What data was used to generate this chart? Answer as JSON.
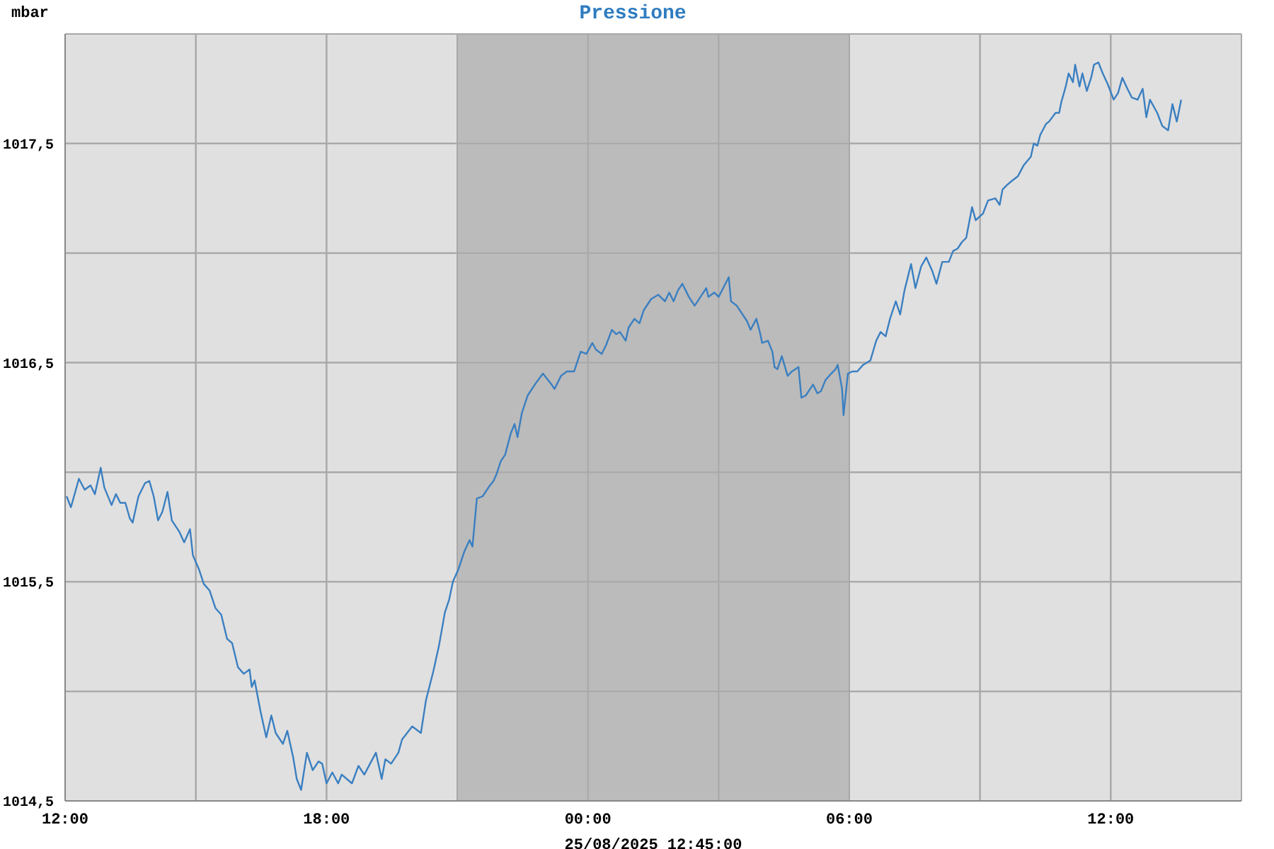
{
  "chart_data": {
    "type": "line",
    "title": "Pressione",
    "ylabel": "mbar",
    "xlabel": "25/08/2025 12:45:00",
    "color": "#3a7fc1",
    "marker": "none",
    "grid": true,
    "xlim": [
      "2025-08-24T12:00",
      "2025-08-25T15:00"
    ],
    "xticks": [
      {
        "value": "2025-08-24T12:00",
        "label": "12:00"
      },
      {
        "value": "2025-08-24T15:00",
        "label": null
      },
      {
        "value": "2025-08-24T18:00",
        "label": "18:00"
      },
      {
        "value": "2025-08-24T21:00",
        "label": null
      },
      {
        "value": "2025-08-25T00:00",
        "label": "00:00"
      },
      {
        "value": "2025-08-25T03:00",
        "label": null
      },
      {
        "value": "2025-08-25T06:00",
        "label": "06:00"
      },
      {
        "value": "2025-08-25T09:00",
        "label": null
      },
      {
        "value": "2025-08-25T12:00",
        "label": "12:00"
      },
      {
        "value": "2025-08-25T15:00",
        "label": null
      }
    ],
    "ylim": [
      1014.5,
      1018
    ],
    "yticks": [
      {
        "value": 1014.5,
        "label": "1014,5"
      },
      {
        "value": 1015,
        "label": null
      },
      {
        "value": 1015.5,
        "label": "1015,5"
      },
      {
        "value": 1016,
        "label": null
      },
      {
        "value": 1016.5,
        "label": "1016,5"
      },
      {
        "value": 1017,
        "label": null
      },
      {
        "value": 1017.5,
        "label": "1017,5"
      },
      {
        "value": 1018,
        "label": null
      }
    ],
    "bands": [
      {
        "axis": "x",
        "from": "2025-08-24T21:00",
        "to": "2025-08-25T06:00",
        "color": "#bbbbbb"
      }
    ],
    "x": [
      "2025-08-24T12:02",
      "2025-08-24T12:08",
      "2025-08-24T12:19",
      "2025-08-24T12:27",
      "2025-08-24T12:35",
      "2025-08-24T12:41",
      "2025-08-24T12:49",
      "2025-08-24T12:54",
      "2025-08-24T13:04",
      "2025-08-24T13:10",
      "2025-08-24T13:16",
      "2025-08-24T13:23",
      "2025-08-24T13:29",
      "2025-08-24T13:33",
      "2025-08-24T13:41",
      "2025-08-24T13:50",
      "2025-08-24T13:56",
      "2025-08-24T14:02",
      "2025-08-24T14:08",
      "2025-08-24T14:14",
      "2025-08-24T14:21",
      "2025-08-24T14:27",
      "2025-08-24T14:37",
      "2025-08-24T14:44",
      "2025-08-24T14:52",
      "2025-08-24T14:56",
      "2025-08-24T15:04",
      "2025-08-24T15:11",
      "2025-08-24T15:19",
      "2025-08-24T15:27",
      "2025-08-24T15:35",
      "2025-08-24T15:43",
      "2025-08-24T15:50",
      "2025-08-24T15:58",
      "2025-08-24T16:06",
      "2025-08-24T16:14",
      "2025-08-24T16:17",
      "2025-08-24T16:21",
      "2025-08-24T16:29",
      "2025-08-24T16:37",
      "2025-08-24T16:44",
      "2025-08-24T16:50",
      "2025-08-24T17:00",
      "2025-08-24T17:06",
      "2025-08-24T17:14",
      "2025-08-24T17:19",
      "2025-08-24T17:25",
      "2025-08-24T17:33",
      "2025-08-24T17:41",
      "2025-08-24T17:49",
      "2025-08-24T17:54",
      "2025-08-24T18:00",
      "2025-08-24T18:08",
      "2025-08-24T18:16",
      "2025-08-24T18:21",
      "2025-08-24T18:35",
      "2025-08-24T18:44",
      "2025-08-24T18:52",
      "2025-08-24T19:00",
      "2025-08-24T19:08",
      "2025-08-24T19:16",
      "2025-08-24T19:21",
      "2025-08-24T19:29",
      "2025-08-24T19:39",
      "2025-08-24T19:44",
      "2025-08-24T19:58",
      "2025-08-24T20:10",
      "2025-08-24T20:17",
      "2025-08-24T20:27",
      "2025-08-24T20:35",
      "2025-08-24T20:43",
      "2025-08-24T20:49",
      "2025-08-24T20:54",
      "2025-08-24T21:02",
      "2025-08-24T21:10",
      "2025-08-24T21:17",
      "2025-08-24T21:21",
      "2025-08-24T21:27",
      "2025-08-24T21:35",
      "2025-08-24T21:43",
      "2025-08-24T21:50",
      "2025-08-24T21:54",
      "2025-08-24T22:00",
      "2025-08-24T22:06",
      "2025-08-24T22:14",
      "2025-08-24T22:19",
      "2025-08-24T22:23",
      "2025-08-24T22:29",
      "2025-08-24T22:37",
      "2025-08-24T22:49",
      "2025-08-24T22:58",
      "2025-08-24T23:10",
      "2025-08-24T23:14",
      "2025-08-24T23:23",
      "2025-08-24T23:31",
      "2025-08-24T23:41",
      "2025-08-24T23:50",
      "2025-08-24T23:58",
      "2025-08-25T00:06",
      "2025-08-25T00:11",
      "2025-08-25T00:19",
      "2025-08-25T00:25",
      "2025-08-25T00:33",
      "2025-08-25T00:39",
      "2025-08-25T00:44",
      "2025-08-25T00:52",
      "2025-08-25T00:56",
      "2025-08-25T01:04",
      "2025-08-25T01:11",
      "2025-08-25T01:17",
      "2025-08-25T01:27",
      "2025-08-25T01:37",
      "2025-08-25T01:46",
      "2025-08-25T01:52",
      "2025-08-25T01:58",
      "2025-08-25T02:04",
      "2025-08-25T02:10",
      "2025-08-25T02:19",
      "2025-08-25T02:27",
      "2025-08-25T02:35",
      "2025-08-25T02:43",
      "2025-08-25T02:46",
      "2025-08-25T02:54",
      "2025-08-25T03:00",
      "2025-08-25T03:14",
      "2025-08-25T03:17",
      "2025-08-25T03:25",
      "2025-08-25T03:39",
      "2025-08-25T03:44",
      "2025-08-25T03:52",
      "2025-08-25T03:56",
      "2025-08-25T04:00",
      "2025-08-25T04:08",
      "2025-08-25T04:14",
      "2025-08-25T04:17",
      "2025-08-25T04:21",
      "2025-08-25T04:27",
      "2025-08-25T04:35",
      "2025-08-25T04:41",
      "2025-08-25T04:50",
      "2025-08-25T04:54",
      "2025-08-25T05:00",
      "2025-08-25T05:10",
      "2025-08-25T05:16",
      "2025-08-25T05:21",
      "2025-08-25T05:27",
      "2025-08-25T05:35",
      "2025-08-25T05:41",
      "2025-08-25T05:44",
      "2025-08-25T05:50",
      "2025-08-25T05:52",
      "2025-08-25T05:58",
      "2025-08-25T06:04",
      "2025-08-25T06:11",
      "2025-08-25T06:19",
      "2025-08-25T06:29",
      "2025-08-25T06:37",
      "2025-08-25T06:43",
      "2025-08-25T06:50",
      "2025-08-25T06:56",
      "2025-08-25T07:04",
      "2025-08-25T07:10",
      "2025-08-25T07:16",
      "2025-08-25T07:25",
      "2025-08-25T07:31",
      "2025-08-25T07:39",
      "2025-08-25T07:46",
      "2025-08-25T07:54",
      "2025-08-25T08:00",
      "2025-08-25T08:08",
      "2025-08-25T08:17",
      "2025-08-25T08:23",
      "2025-08-25T08:29",
      "2025-08-25T08:35",
      "2025-08-25T08:41",
      "2025-08-25T08:49",
      "2025-08-25T08:54",
      "2025-08-25T09:04",
      "2025-08-25T09:11",
      "2025-08-25T09:21",
      "2025-08-25T09:27",
      "2025-08-25T09:31",
      "2025-08-25T09:37",
      "2025-08-25T09:44",
      "2025-08-25T09:52",
      "2025-08-25T10:00",
      "2025-08-25T10:10",
      "2025-08-25T10:14",
      "2025-08-25T10:19",
      "2025-08-25T10:23",
      "2025-08-25T10:31",
      "2025-08-25T10:35",
      "2025-08-25T10:44",
      "2025-08-25T10:49",
      "2025-08-25T10:52",
      "2025-08-25T10:58",
      "2025-08-25T11:02",
      "2025-08-25T11:08",
      "2025-08-25T11:11",
      "2025-08-25T11:17",
      "2025-08-25T11:21",
      "2025-08-25T11:27",
      "2025-08-25T11:33",
      "2025-08-25T11:37",
      "2025-08-25T11:43",
      "2025-08-25T11:49",
      "2025-08-25T11:56",
      "2025-08-25T12:04",
      "2025-08-25T12:10",
      "2025-08-25T12:16",
      "2025-08-25T12:23",
      "2025-08-25T12:29",
      "2025-08-25T12:37",
      "2025-08-25T12:44",
      "2025-08-25T12:49",
      "2025-08-25T12:54",
      "2025-08-25T13:04",
      "2025-08-25T13:11",
      "2025-08-25T13:19",
      "2025-08-25T13:25",
      "2025-08-25T13:31",
      "2025-08-25T13:37"
    ],
    "values": [
      1015.89,
      1015.84,
      1015.97,
      1015.92,
      1015.94,
      1015.9,
      1016.02,
      1015.93,
      1015.85,
      1015.9,
      1015.86,
      1015.86,
      1015.79,
      1015.77,
      1015.89,
      1015.95,
      1015.96,
      1015.89,
      1015.78,
      1015.82,
      1015.91,
      1015.78,
      1015.73,
      1015.68,
      1015.74,
      1015.62,
      1015.56,
      1015.49,
      1015.46,
      1015.38,
      1015.35,
      1015.24,
      1015.22,
      1015.11,
      1015.08,
      1015.1,
      1015.02,
      1015.05,
      1014.91,
      1014.79,
      1014.89,
      1014.81,
      1014.76,
      1014.82,
      1014.7,
      1014.6,
      1014.55,
      1014.72,
      1014.64,
      1014.68,
      1014.67,
      1014.58,
      1014.63,
      1014.58,
      1014.62,
      1014.58,
      1014.66,
      1014.62,
      1014.67,
      1014.72,
      1014.6,
      1014.69,
      1014.67,
      1014.72,
      1014.78,
      1014.84,
      1014.81,
      1014.96,
      1015.09,
      1015.21,
      1015.36,
      1015.42,
      1015.5,
      1015.56,
      1015.64,
      1015.69,
      1015.66,
      1015.88,
      1015.89,
      1015.93,
      1015.96,
      1015.99,
      1016.05,
      1016.08,
      1016.18,
      1016.22,
      1016.16,
      1016.27,
      1016.35,
      1016.41,
      1016.45,
      1016.4,
      1016.38,
      1016.44,
      1016.46,
      1016.46,
      1016.55,
      1016.54,
      1016.59,
      1016.56,
      1016.54,
      1016.58,
      1016.65,
      1016.63,
      1016.64,
      1016.6,
      1016.66,
      1016.7,
      1016.68,
      1016.74,
      1016.79,
      1016.81,
      1016.78,
      1016.82,
      1016.78,
      1016.83,
      1016.86,
      1016.8,
      1016.76,
      1016.8,
      1016.84,
      1016.8,
      1016.82,
      1016.8,
      1016.89,
      1016.78,
      1016.76,
      1016.69,
      1016.65,
      1016.7,
      1016.65,
      1016.59,
      1016.6,
      1016.55,
      1016.48,
      1016.47,
      1016.53,
      1016.44,
      1016.46,
      1016.48,
      1016.34,
      1016.35,
      1016.4,
      1016.36,
      1016.37,
      1016.42,
      1016.45,
      1016.47,
      1016.49,
      1016.38,
      1016.26,
      1016.45,
      1016.46,
      1016.46,
      1016.49,
      1016.51,
      1016.6,
      1016.64,
      1016.62,
      1016.7,
      1016.78,
      1016.72,
      1016.83,
      1016.95,
      1016.84,
      1016.94,
      1016.98,
      1016.92,
      1016.86,
      1016.96,
      1016.96,
      1017.01,
      1017.02,
      1017.05,
      1017.07,
      1017.21,
      1017.15,
      1017.18,
      1017.24,
      1017.25,
      1017.22,
      1017.29,
      1017.31,
      1017.33,
      1017.35,
      1017.4,
      1017.44,
      1017.5,
      1017.49,
      1017.54,
      1017.59,
      1017.6,
      1017.64,
      1017.64,
      1017.69,
      1017.76,
      1017.82,
      1017.78,
      1017.86,
      1017.76,
      1017.82,
      1017.74,
      1017.8,
      1017.86,
      1017.87,
      1017.82,
      1017.77,
      1017.7,
      1017.73,
      1017.8,
      1017.75,
      1017.71,
      1017.7,
      1017.75,
      1017.62,
      1017.7,
      1017.64,
      1017.58,
      1017.56,
      1017.68,
      1017.6,
      1017.7
    ]
  }
}
